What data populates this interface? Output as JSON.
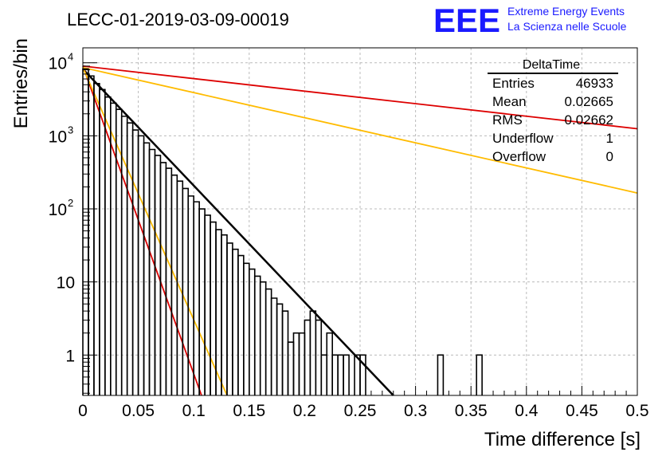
{
  "title": "LECC-01-2019-03-09-00019",
  "brand": {
    "logo": "EEE",
    "line1": "Extreme Energy Events",
    "line2": "La Scienza nelle Scuole",
    "color": "#1a1aff"
  },
  "colors": {
    "histogram": "#000000",
    "fit": "#000000",
    "red_curves": "#dd0000",
    "yellow_curves": "#ffbb00",
    "grid": "#bbbbbb"
  },
  "stats": {
    "name": "DeltaTime",
    "rows": [
      {
        "label": "Entries",
        "value": "46933"
      },
      {
        "label": "Mean",
        "value": "0.02665"
      },
      {
        "label": "RMS",
        "value": "0.02662"
      },
      {
        "label": "Underflow",
        "value": "1"
      },
      {
        "label": "Overflow",
        "value": "0"
      }
    ]
  },
  "chart_data": {
    "type": "histogram",
    "title": "LECC-01-2019-03-09-00019",
    "xlabel": "Time difference [s]",
    "ylabel": "Entries/bin",
    "xlim": [
      0,
      0.5
    ],
    "ylim": [
      0.28,
      16000
    ],
    "y_scale": "log",
    "grid": true,
    "x_ticks": [
      "0",
      "0.05",
      "0.1",
      "0.15",
      "0.2",
      "0.25",
      "0.3",
      "0.35",
      "0.4",
      "0.45",
      "0.5"
    ],
    "y_ticks": [
      {
        "value": 1,
        "label": "1"
      },
      {
        "value": 10,
        "label": "10"
      },
      {
        "value": 100,
        "label": "10",
        "exp": "2"
      },
      {
        "value": 1000,
        "label": "10",
        "exp": "3"
      },
      {
        "value": 10000,
        "label": "10",
        "exp": "4"
      }
    ],
    "bin_width": 0.005,
    "bins": [
      {
        "x": 0.0,
        "y": 8200
      },
      {
        "x": 0.005,
        "y": 6600
      },
      {
        "x": 0.01,
        "y": 5200
      },
      {
        "x": 0.015,
        "y": 4300
      },
      {
        "x": 0.02,
        "y": 3400
      },
      {
        "x": 0.025,
        "y": 2800
      },
      {
        "x": 0.03,
        "y": 2300
      },
      {
        "x": 0.035,
        "y": 1850
      },
      {
        "x": 0.04,
        "y": 1500
      },
      {
        "x": 0.045,
        "y": 1200
      },
      {
        "x": 0.05,
        "y": 1000
      },
      {
        "x": 0.055,
        "y": 800
      },
      {
        "x": 0.06,
        "y": 650
      },
      {
        "x": 0.065,
        "y": 540
      },
      {
        "x": 0.07,
        "y": 430
      },
      {
        "x": 0.075,
        "y": 360
      },
      {
        "x": 0.08,
        "y": 290
      },
      {
        "x": 0.085,
        "y": 240
      },
      {
        "x": 0.09,
        "y": 190
      },
      {
        "x": 0.095,
        "y": 150
      },
      {
        "x": 0.1,
        "y": 125
      },
      {
        "x": 0.105,
        "y": 100
      },
      {
        "x": 0.11,
        "y": 82
      },
      {
        "x": 0.115,
        "y": 66
      },
      {
        "x": 0.12,
        "y": 52
      },
      {
        "x": 0.125,
        "y": 44
      },
      {
        "x": 0.13,
        "y": 34
      },
      {
        "x": 0.135,
        "y": 28
      },
      {
        "x": 0.14,
        "y": 23
      },
      {
        "x": 0.145,
        "y": 18
      },
      {
        "x": 0.15,
        "y": 15
      },
      {
        "x": 0.155,
        "y": 12
      },
      {
        "x": 0.16,
        "y": 10
      },
      {
        "x": 0.165,
        "y": 8
      },
      {
        "x": 0.17,
        "y": 6
      },
      {
        "x": 0.175,
        "y": 5
      },
      {
        "x": 0.18,
        "y": 4
      },
      {
        "x": 0.185,
        "y": 1.5
      },
      {
        "x": 0.19,
        "y": 2
      },
      {
        "x": 0.195,
        "y": 2
      },
      {
        "x": 0.2,
        "y": 3
      },
      {
        "x": 0.205,
        "y": 4
      },
      {
        "x": 0.21,
        "y": 3
      },
      {
        "x": 0.215,
        "y": 1
      },
      {
        "x": 0.22,
        "y": 2
      },
      {
        "x": 0.225,
        "y": 1
      },
      {
        "x": 0.23,
        "y": 1
      },
      {
        "x": 0.235,
        "y": 1
      },
      {
        "x": 0.24,
        "y": 0
      },
      {
        "x": 0.245,
        "y": 1
      },
      {
        "x": 0.25,
        "y": 1
      },
      {
        "x": 0.255,
        "y": 0
      },
      {
        "x": 0.26,
        "y": 0
      },
      {
        "x": 0.265,
        "y": 0
      },
      {
        "x": 0.27,
        "y": 0
      },
      {
        "x": 0.32,
        "y": 1
      },
      {
        "x": 0.355,
        "y": 1
      }
    ],
    "fit_lines": [
      {
        "color": "#000000",
        "x": [
          0,
          0.28
        ],
        "y": [
          8200,
          0.28
        ]
      },
      {
        "color": "#dd0000",
        "x": [
          0,
          0.5
        ],
        "y": [
          9000,
          1250
        ]
      },
      {
        "color": "#dd0000",
        "x": [
          0,
          0.107
        ],
        "y": [
          9000,
          0.28
        ]
      },
      {
        "color": "#ffbb00",
        "x": [
          0,
          0.5
        ],
        "y": [
          8600,
          165
        ]
      },
      {
        "color": "#ffbb00",
        "x": [
          0,
          0.13
        ],
        "y": [
          8600,
          0.28
        ]
      }
    ]
  }
}
